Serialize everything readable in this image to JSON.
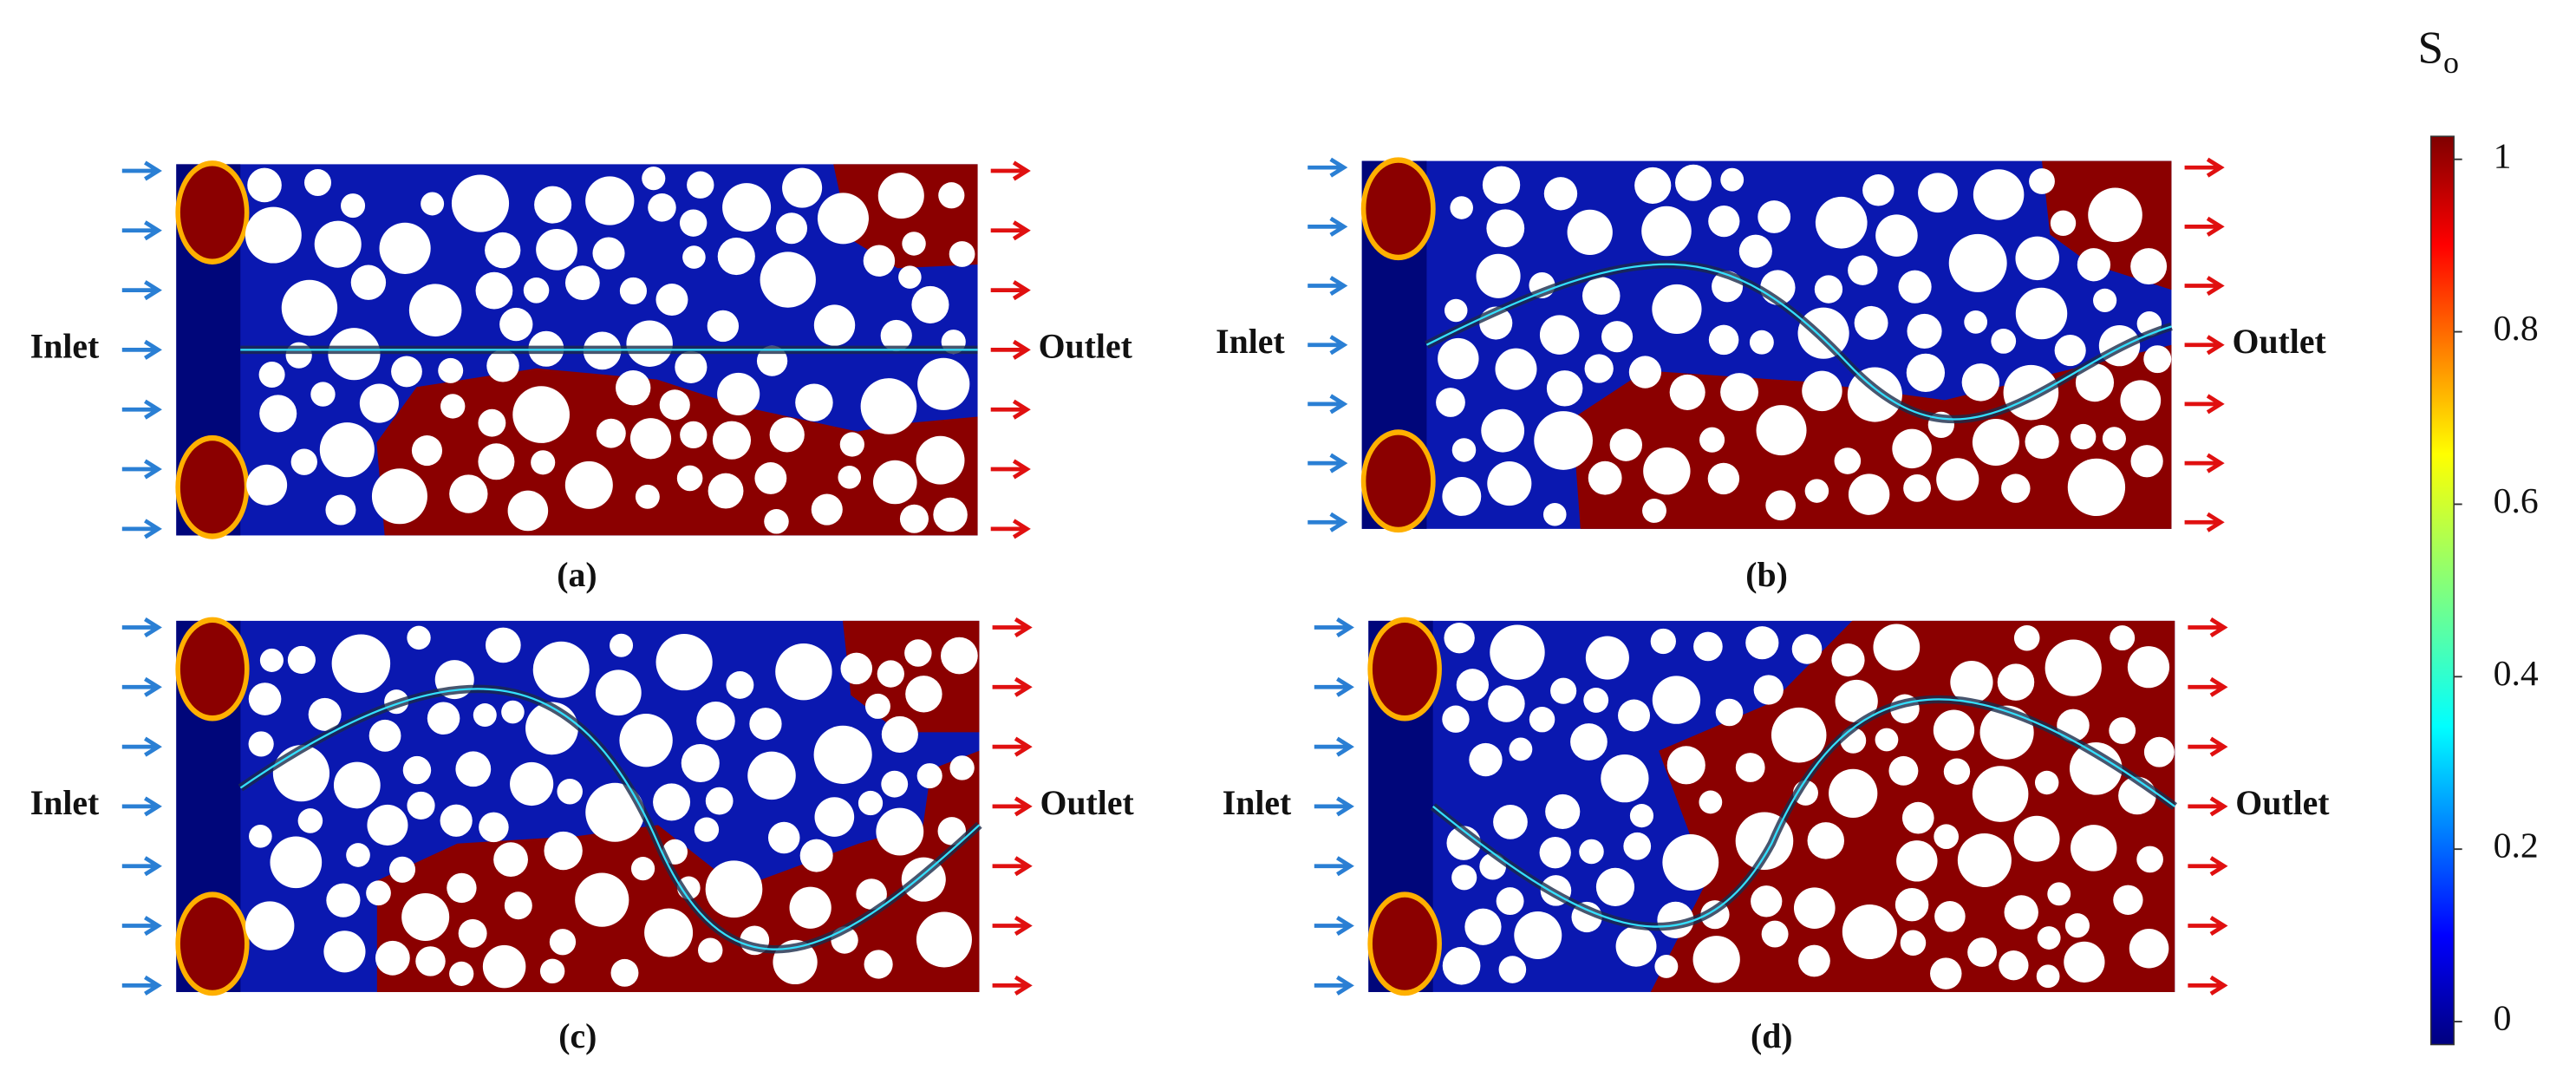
{
  "panels": [
    {
      "label": "(a)",
      "inlet": "Inlet",
      "outlet": "Outlet"
    },
    {
      "label": "(b)",
      "inlet": "Inlet",
      "outlet": "Outlet"
    },
    {
      "label": "(c)",
      "inlet": "Inlet",
      "outlet": "Outlet"
    },
    {
      "label": "(d)",
      "inlet": "Inlet",
      "outlet": "Outlet"
    }
  ],
  "colorbar": {
    "title": "S",
    "subscript": "o",
    "lim": [
      0,
      1
    ],
    "ticks": [
      0,
      0.2,
      0.4,
      0.6,
      0.8,
      1
    ]
  }
}
